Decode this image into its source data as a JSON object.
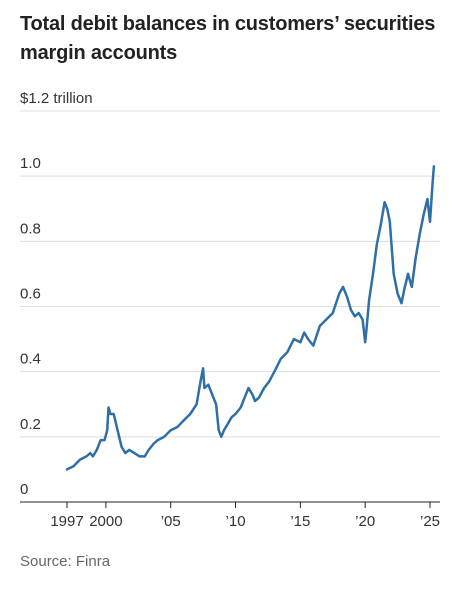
{
  "title": "Total debit balances in customers’ securities margin accounts",
  "source": "Source: Finra",
  "chart_data": {
    "type": "line",
    "title": "Total debit balances in customers’ securities margin accounts",
    "ylabel": "",
    "xlabel": "",
    "ylim": [
      0,
      1.2
    ],
    "xlim": [
      1997,
      2025.5
    ],
    "y_ticks": [
      {
        "value": 0,
        "label": "0"
      },
      {
        "value": 0.2,
        "label": "0.2"
      },
      {
        "value": 0.4,
        "label": "0.4"
      },
      {
        "value": 0.6,
        "label": "0.6"
      },
      {
        "value": 0.8,
        "label": "0.8"
      },
      {
        "value": 1.0,
        "label": "1.0"
      },
      {
        "value": 1.2,
        "label": "$1.2 trillion"
      }
    ],
    "x_ticks": [
      {
        "value": 1997,
        "label": "1997"
      },
      {
        "value": 2000,
        "label": "2000"
      },
      {
        "value": 2005,
        "label": "’05"
      },
      {
        "value": 2010,
        "label": "’10"
      },
      {
        "value": 2015,
        "label": "’15"
      },
      {
        "value": 2020,
        "label": "’20"
      },
      {
        "value": 2025,
        "label": "’25"
      }
    ],
    "grid": true,
    "line_color": "#2f6fa6",
    "series": [
      {
        "x": [
          1997.0,
          1997.5,
          1998.0,
          1998.5,
          1998.8,
          1999.0,
          1999.3,
          1999.6,
          1999.9,
          2000.1,
          2000.2,
          2000.35,
          2000.6,
          2000.9,
          2001.2,
          2001.5,
          2001.8,
          2002.2,
          2002.6,
          2003.0,
          2003.3,
          2003.7,
          2004.0,
          2004.5,
          2005.0,
          2005.5,
          2006.0,
          2006.5,
          2007.0,
          2007.3,
          2007.5,
          2007.6,
          2007.9,
          2008.2,
          2008.5,
          2008.7,
          2008.9,
          2009.1,
          2009.4,
          2009.7,
          2010.0,
          2010.4,
          2010.7,
          2011.0,
          2011.3,
          2011.5,
          2011.8,
          2012.2,
          2012.6,
          2013.0,
          2013.5,
          2014.0,
          2014.5,
          2015.0,
          2015.3,
          2015.6,
          2016.0,
          2016.5,
          2017.0,
          2017.5,
          2018.0,
          2018.3,
          2018.6,
          2018.9,
          2019.2,
          2019.5,
          2019.8,
          2020.0,
          2020.1,
          2020.3,
          2020.6,
          2020.9,
          2021.2,
          2021.5,
          2021.7,
          2021.9,
          2022.2,
          2022.5,
          2022.8,
          2023.0,
          2023.3,
          2023.6,
          2023.9,
          2024.2,
          2024.5,
          2024.8,
          2025.0,
          2025.2,
          2025.3
        ],
        "values": [
          0.1,
          0.11,
          0.13,
          0.14,
          0.15,
          0.14,
          0.16,
          0.19,
          0.19,
          0.22,
          0.29,
          0.27,
          0.27,
          0.22,
          0.17,
          0.15,
          0.16,
          0.15,
          0.14,
          0.14,
          0.16,
          0.18,
          0.19,
          0.2,
          0.22,
          0.23,
          0.25,
          0.27,
          0.3,
          0.37,
          0.41,
          0.35,
          0.36,
          0.33,
          0.3,
          0.22,
          0.2,
          0.22,
          0.24,
          0.26,
          0.27,
          0.29,
          0.32,
          0.35,
          0.33,
          0.31,
          0.32,
          0.35,
          0.37,
          0.4,
          0.44,
          0.46,
          0.5,
          0.49,
          0.52,
          0.5,
          0.48,
          0.54,
          0.56,
          0.58,
          0.64,
          0.66,
          0.63,
          0.59,
          0.57,
          0.58,
          0.56,
          0.49,
          0.53,
          0.62,
          0.7,
          0.79,
          0.85,
          0.92,
          0.9,
          0.86,
          0.7,
          0.64,
          0.61,
          0.65,
          0.7,
          0.66,
          0.75,
          0.82,
          0.88,
          0.93,
          0.86,
          0.98,
          1.03
        ]
      }
    ]
  }
}
